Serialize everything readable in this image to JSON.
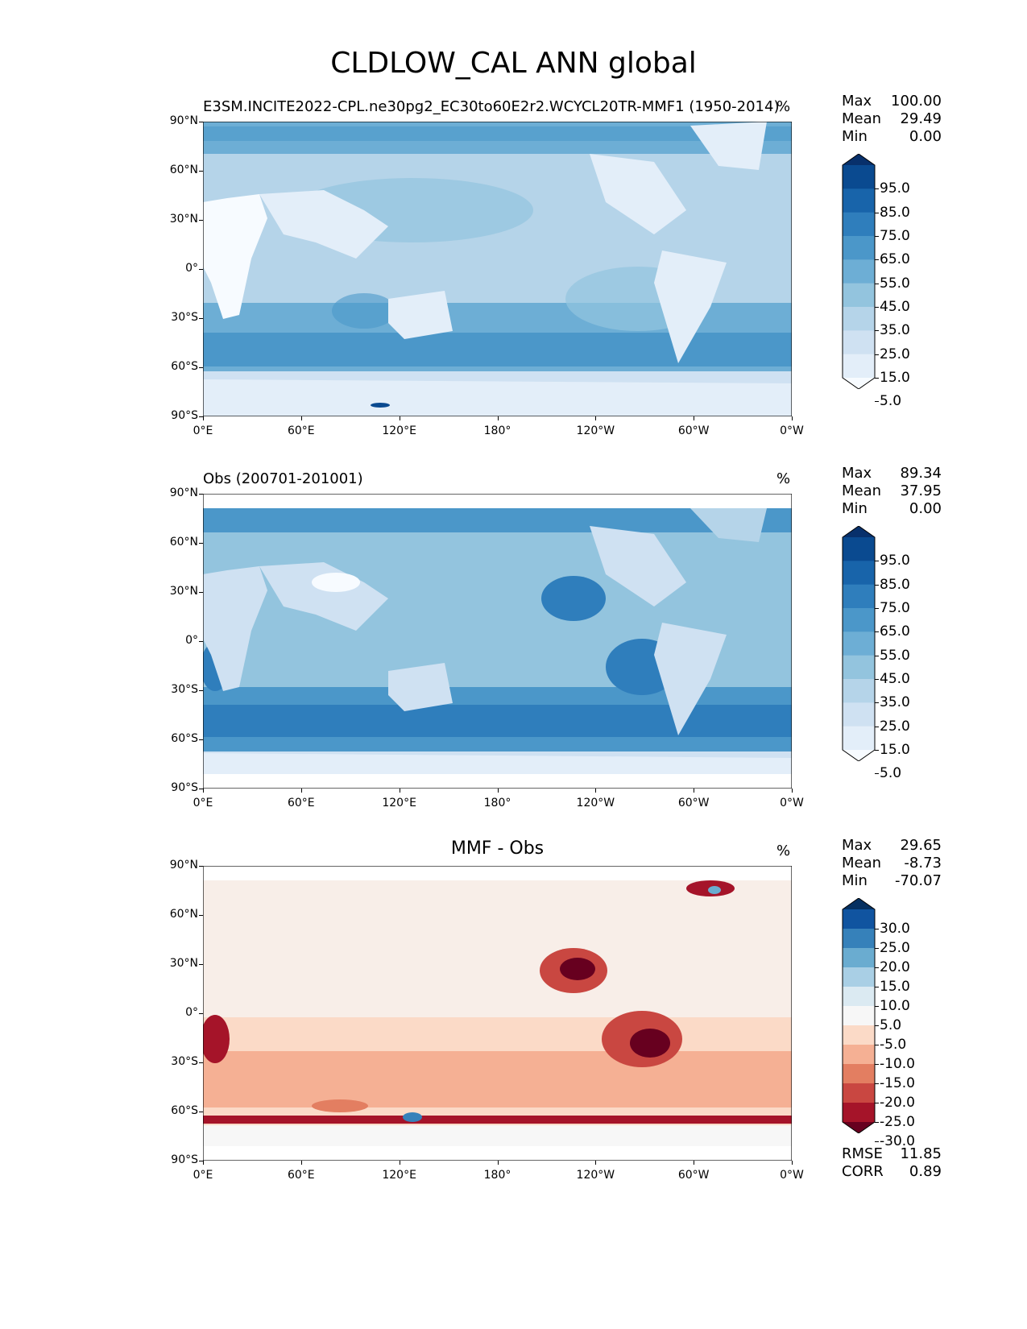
{
  "title": "CLDLOW_CAL ANN global",
  "lat_ticks": [
    "90°N",
    "60°N",
    "30°N",
    "0°",
    "30°S",
    "60°S",
    "90°S"
  ],
  "lon_ticks": [
    "0°E",
    "60°E",
    "120°E",
    "180°",
    "120°W",
    "60°W",
    "0°W"
  ],
  "seq_levels": [
    "95.0",
    "85.0",
    "75.0",
    "65.0",
    "55.0",
    "45.0",
    "35.0",
    "25.0",
    "15.0",
    "5.0"
  ],
  "diff_levels": [
    "30.0",
    "25.0",
    "20.0",
    "15.0",
    "10.0",
    "5.0",
    "-5.0",
    "-10.0",
    "-15.0",
    "-20.0",
    "-25.0",
    "-30.0"
  ],
  "colors": {
    "seq": [
      "#f7fbff",
      "#e3eef9",
      "#cfe1f2",
      "#b5d4e9",
      "#93c4de",
      "#6daed5",
      "#4b97c9",
      "#2f7ebc",
      "#1864aa",
      "#0a4a90",
      "#08306b"
    ],
    "diff": [
      "#67001f",
      "#a51429",
      "#c94741",
      "#e37e61",
      "#f5b094",
      "#fbdac7",
      "#f7f7f7",
      "#dbeaf2",
      "#a9cfe5",
      "#6aacd0",
      "#3681ba",
      "#1054a0",
      "#053061"
    ]
  },
  "panels": [
    {
      "title": "E3SM.INCITE2022-CPL.ne30pg2_EC30to60E2r2.WCYCL20TR-MMF1 (1950-2014)",
      "units": "%",
      "stats": {
        "max_label": "Max",
        "max": "100.00",
        "mean_label": "Mean",
        "mean": "29.49",
        "min_label": "Min",
        "min": "0.00"
      }
    },
    {
      "title": "Obs (200701-201001)",
      "units": "%",
      "stats": {
        "max_label": "Max",
        "max": "89.34",
        "mean_label": "Mean",
        "mean": "37.95",
        "min_label": "Min",
        "min": "0.00"
      }
    },
    {
      "title": "MMF - Obs",
      "units": "%",
      "stats": {
        "max_label": "Max",
        "max": "29.65",
        "mean_label": "Mean",
        "mean": "-8.73",
        "min_label": "Min",
        "min": "-70.07"
      },
      "rmse_label": "RMSE",
      "rmse": "11.85",
      "corr_label": "CORR",
      "corr": "0.89"
    }
  ]
}
